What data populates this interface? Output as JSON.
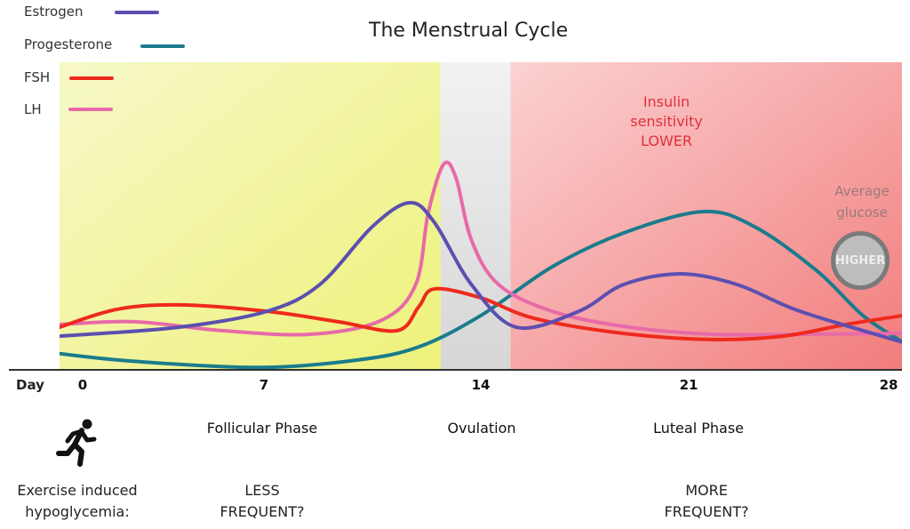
{
  "chart_data": {
    "type": "line",
    "title": "The Menstrual Cycle",
    "xlabel": "Day",
    "x_ticks": [
      0,
      7,
      14,
      21,
      28
    ],
    "xlim": [
      -0.9,
      28.5
    ],
    "ylim": [
      0,
      100
    ],
    "ylabel": "",
    "legend_position": "top-left",
    "series": [
      {
        "name": "Estrogen",
        "color": "#5b4fb0",
        "points": [
          [
            -0.9,
            10.7
          ],
          [
            3.7,
            13.6
          ],
          [
            7.1,
            18.8
          ],
          [
            8.8,
            27.5
          ],
          [
            10.5,
            46.4
          ],
          [
            11.7,
            54.2
          ],
          [
            12.5,
            47.8
          ],
          [
            13.7,
            27.5
          ],
          [
            15.2,
            13.6
          ],
          [
            17.3,
            18.8
          ],
          [
            18.8,
            27.5
          ],
          [
            20.7,
            31
          ],
          [
            22.7,
            27.5
          ],
          [
            24.9,
            18.8
          ],
          [
            28.5,
            8.7
          ]
        ]
      },
      {
        "name": "Progesterone",
        "color": "#1a7c8c",
        "points": [
          [
            -0.9,
            5
          ],
          [
            2.0,
            2.5
          ],
          [
            6.8,
            0.5
          ],
          [
            10.0,
            2.9
          ],
          [
            12.0,
            7.2
          ],
          [
            14.0,
            17.4
          ],
          [
            16.4,
            33.3
          ],
          [
            18.8,
            44.3
          ],
          [
            21.5,
            51.3
          ],
          [
            23.3,
            46.4
          ],
          [
            25.5,
            31.9
          ],
          [
            27.1,
            17.4
          ],
          [
            28.5,
            8.7
          ]
        ]
      },
      {
        "name": "FSH",
        "color": "#ee2a1c",
        "points": [
          [
            -0.9,
            13.6
          ],
          [
            1.3,
            19.4
          ],
          [
            3.7,
            20.9
          ],
          [
            7.1,
            18.8
          ],
          [
            9.4,
            15.4
          ],
          [
            11.3,
            12.5
          ],
          [
            12.0,
            20.3
          ],
          [
            12.5,
            26.1
          ],
          [
            14.0,
            23.2
          ],
          [
            15.8,
            16.5
          ],
          [
            18.8,
            11.6
          ],
          [
            21.8,
            9.6
          ],
          [
            24.3,
            10.7
          ],
          [
            26.5,
            14.5
          ],
          [
            28.5,
            17.4
          ]
        ]
      },
      {
        "name": "LH",
        "color": "#e76aa8",
        "points": [
          [
            -0.9,
            14.5
          ],
          [
            2.0,
            15.4
          ],
          [
            5.4,
            12.5
          ],
          [
            8.5,
            11.3
          ],
          [
            10.8,
            15.9
          ],
          [
            11.9,
            27.5
          ],
          [
            12.3,
            50.7
          ],
          [
            12.8,
            66.7
          ],
          [
            13.2,
            62.3
          ],
          [
            13.7,
            42
          ],
          [
            14.6,
            27.5
          ],
          [
            16.4,
            18.8
          ],
          [
            18.8,
            13.9
          ],
          [
            21.8,
            11.3
          ],
          [
            24.9,
            11.3
          ],
          [
            28.5,
            11.6
          ]
        ]
      }
    ],
    "regions": [
      {
        "name": "Follicular Phase",
        "from": -0.9,
        "to": 12.7,
        "color": "#f2f5a0"
      },
      {
        "name": "Ovulation",
        "from": 12.7,
        "to": 15.0,
        "color": "#e2e2e2"
      },
      {
        "name": "Luteal Phase",
        "from": 15.0,
        "to": 28.5,
        "color": "#f7a5a5"
      }
    ],
    "annotations": {
      "insulin": [
        "Insulin",
        "sensitivity",
        "LOWER"
      ],
      "glucose_label": [
        "Average",
        "glucose"
      ],
      "glucose_badge": "HIGHER"
    }
  },
  "labels": {
    "day": "Day",
    "phases": [
      "Follicular Phase",
      "Ovulation",
      "Luteal Phase"
    ],
    "exercise": [
      "Exercise induced",
      "hypoglycemia:"
    ],
    "less": [
      "LESS",
      "FREQUENT?"
    ],
    "more": [
      "MORE",
      "FREQUENT?"
    ]
  },
  "icons": {
    "runner": "running-person-icon"
  }
}
